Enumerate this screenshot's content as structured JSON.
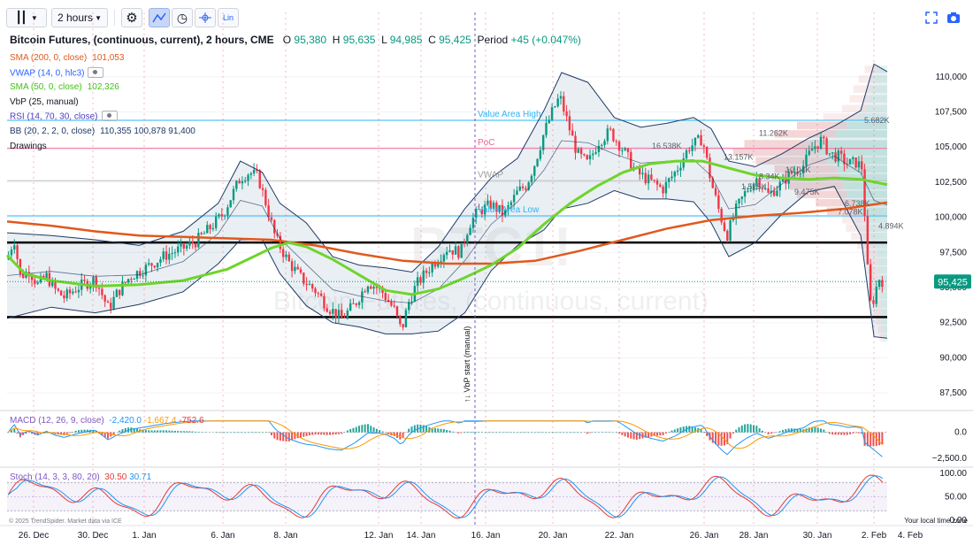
{
  "toolbar": {
    "timeframe": "2 hours",
    "scale_mode": "Lin"
  },
  "legend": {
    "symbol": "Bitcoin Futures, (continuous, current), 2 hours, CME",
    "o_label": "O",
    "o_value": "95,380",
    "h_label": "H",
    "h_value": "95,635",
    "l_label": "L",
    "l_value": "94,985",
    "c_label": "C",
    "c_value": "95,425",
    "period_label": "Period",
    "period_value": "+45 (+0.047%)",
    "indicators": [
      {
        "label": "SMA (200, 0, close)",
        "value": "101,053",
        "color": "#e0591c"
      },
      {
        "label": "VWAP (14, 0, hlc3)",
        "value": "",
        "color": "#2962ff"
      },
      {
        "label": "SMA (50, 0, close)",
        "value": "102,326",
        "color": "#43c11a"
      },
      {
        "label": "VbP (25, manual)",
        "value": "",
        "color": "#131722"
      },
      {
        "label": "RSI (14, 70, 30, close)",
        "value": "",
        "color": "#4c3bc1"
      },
      {
        "label": "BB (20, 2, 2, 0, close)",
        "value": "110,355 100,878 91,400",
        "color": "#1e3a66"
      },
      {
        "label": "Drawings",
        "value": "",
        "color": "#131722"
      }
    ]
  },
  "watermark": {
    "line1": "BTC1!",
    "line2": "Bitcoin Futures, (continuous, current)"
  },
  "annotations": {
    "value_area_high": "Value Area High",
    "poc": "PoC",
    "vwap": "VWAP",
    "value_area_low": "Value Area Low",
    "vbp_start": "↑↓ VbP start (manual)",
    "volume_labels": [
      "11.262K",
      "5.682K",
      "16.538K",
      "13.157K",
      "10.04K",
      "8.34K",
      "1.525K",
      "9.475K",
      "6.738K",
      "7.078K",
      "4.894K"
    ]
  },
  "macd": {
    "label": "MACD (12, 26, 9, close)",
    "v1": "-2,420.0",
    "v2": "-1,667.4",
    "v3": "-752.6",
    "ticks": [
      "0.0",
      "−2,500.0"
    ]
  },
  "stoch": {
    "label": "Stoch (14, 3, 3, 80, 20)",
    "v1": "30.50",
    "v2": "30.71",
    "ticks": [
      "100.00",
      "50.00",
      "0.00"
    ]
  },
  "footer": {
    "local_time": "Your local time zone",
    "copyright": "© 2025 TrendSpider. Market data via ICE"
  },
  "chart_data": {
    "type": "candlestick",
    "price_axis": {
      "ticks": [
        "110,000",
        "107,500",
        "105,000",
        "102,500",
        "100,000",
        "97,500",
        "95,000",
        "92,500",
        "90,000",
        "87,500"
      ],
      "range": [
        86500,
        112000
      ],
      "last_price": "95,425"
    },
    "x_labels": [
      "26. Dec",
      "30. Dec",
      "1. Jan",
      "6. Jan",
      "8. Jan",
      "12. Jan",
      "14. Jan",
      "16. Jan",
      "20. Jan",
      "22. Jan",
      "26. Jan",
      "28. Jan",
      "30. Jan",
      "2. Feb",
      "4. Feb"
    ],
    "horizontal_lines": [
      {
        "name": "value-area-high",
        "price": 106900,
        "color": "#29b6f6"
      },
      {
        "name": "poc",
        "price": 104900,
        "color": "#f06292"
      },
      {
        "name": "vwap",
        "price": 102600,
        "color": "#bdbdbd"
      },
      {
        "name": "value-area-low",
        "price": 100100,
        "color": "#29b6f6"
      },
      {
        "name": "resistance",
        "price": 98200,
        "color": "#000000"
      },
      {
        "name": "support",
        "price": 92900,
        "color": "#000000"
      }
    ],
    "price_path": [
      [
        0,
        97000
      ],
      [
        8,
        98500
      ],
      [
        15,
        95800
      ],
      [
        25,
        96200
      ],
      [
        35,
        95200
      ],
      [
        45,
        95800
      ],
      [
        55,
        94800
      ],
      [
        65,
        94300
      ],
      [
        80,
        95000
      ],
      [
        100,
        95600
      ],
      [
        115,
        93500
      ],
      [
        125,
        94600
      ],
      [
        140,
        95800
      ],
      [
        160,
        96500
      ],
      [
        180,
        97300
      ],
      [
        200,
        97800
      ],
      [
        215,
        98300
      ],
      [
        230,
        99200
      ],
      [
        245,
        100200
      ],
      [
        255,
        101500
      ],
      [
        265,
        102800
      ],
      [
        275,
        103200
      ],
      [
        285,
        102900
      ],
      [
        295,
        100800
      ],
      [
        305,
        98500
      ],
      [
        320,
        96800
      ],
      [
        335,
        95600
      ],
      [
        350,
        94800
      ],
      [
        365,
        93600
      ],
      [
        380,
        92800
      ],
      [
        395,
        93800
      ],
      [
        410,
        95400
      ],
      [
        425,
        94800
      ],
      [
        440,
        93400
      ],
      [
        448,
        91900
      ],
      [
        456,
        93900
      ],
      [
        465,
        95200
      ],
      [
        480,
        96400
      ],
      [
        500,
        97800
      ],
      [
        515,
        97500
      ],
      [
        525,
        99500
      ],
      [
        535,
        100400
      ],
      [
        550,
        100900
      ],
      [
        565,
        100200
      ],
      [
        580,
        101800
      ],
      [
        590,
        102300
      ],
      [
        600,
        103900
      ],
      [
        610,
        106000
      ],
      [
        620,
        107600
      ],
      [
        628,
        108600
      ],
      [
        638,
        106500
      ],
      [
        648,
        104500
      ],
      [
        660,
        103800
      ],
      [
        672,
        105400
      ],
      [
        685,
        106100
      ],
      [
        700,
        104800
      ],
      [
        715,
        103200
      ],
      [
        730,
        102600
      ],
      [
        745,
        102000
      ],
      [
        760,
        103300
      ],
      [
        775,
        105000
      ],
      [
        790,
        105600
      ],
      [
        800,
        102500
      ],
      [
        810,
        100200
      ],
      [
        818,
        98700
      ],
      [
        828,
        100500
      ],
      [
        840,
        101900
      ],
      [
        852,
        102800
      ],
      [
        865,
        101600
      ],
      [
        878,
        102300
      ],
      [
        890,
        103100
      ],
      [
        905,
        103700
      ],
      [
        915,
        104900
      ],
      [
        925,
        105500
      ],
      [
        935,
        104500
      ],
      [
        945,
        104300
      ],
      [
        955,
        103800
      ],
      [
        965,
        103900
      ],
      [
        972,
        103500
      ],
      [
        976,
        98200
      ],
      [
        980,
        93800
      ],
      [
        985,
        94200
      ],
      [
        990,
        95700
      ],
      [
        996,
        95425
      ]
    ],
    "sma200": [
      [
        0,
        99700
      ],
      [
        50,
        99400
      ],
      [
        100,
        99000
      ],
      [
        150,
        98700
      ],
      [
        200,
        98600
      ],
      [
        250,
        98500
      ],
      [
        300,
        98400
      ],
      [
        350,
        98000
      ],
      [
        400,
        97400
      ],
      [
        450,
        96900
      ],
      [
        500,
        96700
      ],
      [
        550,
        96700
      ],
      [
        600,
        96900
      ],
      [
        650,
        97600
      ],
      [
        700,
        98400
      ],
      [
        750,
        99200
      ],
      [
        800,
        99800
      ],
      [
        850,
        100100
      ],
      [
        900,
        100300
      ],
      [
        950,
        100600
      ],
      [
        1000,
        101053
      ]
    ],
    "sma50": [
      [
        0,
        97300
      ],
      [
        20,
        96000
      ],
      [
        50,
        95500
      ],
      [
        100,
        95100
      ],
      [
        150,
        95200
      ],
      [
        200,
        95500
      ],
      [
        250,
        96300
      ],
      [
        280,
        97200
      ],
      [
        300,
        97800
      ],
      [
        320,
        98200
      ],
      [
        340,
        97900
      ],
      [
        370,
        97000
      ],
      [
        400,
        95900
      ],
      [
        430,
        94800
      ],
      [
        460,
        94500
      ],
      [
        490,
        94900
      ],
      [
        520,
        95700
      ],
      [
        550,
        96600
      ],
      [
        580,
        97800
      ],
      [
        610,
        99500
      ],
      [
        640,
        101000
      ],
      [
        670,
        102200
      ],
      [
        700,
        103200
      ],
      [
        730,
        103800
      ],
      [
        760,
        104000
      ],
      [
        790,
        104000
      ],
      [
        820,
        103500
      ],
      [
        850,
        103000
      ],
      [
        880,
        102800
      ],
      [
        910,
        102700
      ],
      [
        940,
        102800
      ],
      [
        970,
        102700
      ],
      [
        1000,
        102326
      ]
    ],
    "bb_upper": [
      [
        0,
        98900
      ],
      [
        50,
        98700
      ],
      [
        100,
        98400
      ],
      [
        150,
        98000
      ],
      [
        200,
        99000
      ],
      [
        240,
        101000
      ],
      [
        265,
        104000
      ],
      [
        290,
        103200
      ],
      [
        310,
        101000
      ],
      [
        340,
        99600
      ],
      [
        370,
        97200
      ],
      [
        400,
        96600
      ],
      [
        430,
        96400
      ],
      [
        460,
        96100
      ],
      [
        490,
        97900
      ],
      [
        520,
        100600
      ],
      [
        550,
        102800
      ],
      [
        580,
        104200
      ],
      [
        610,
        107600
      ],
      [
        630,
        110300
      ],
      [
        660,
        109600
      ],
      [
        690,
        107100
      ],
      [
        720,
        106400
      ],
      [
        750,
        106700
      ],
      [
        780,
        107100
      ],
      [
        800,
        106300
      ],
      [
        820,
        104000
      ],
      [
        850,
        103600
      ],
      [
        880,
        104500
      ],
      [
        910,
        105600
      ],
      [
        940,
        106500
      ],
      [
        970,
        107600
      ],
      [
        985,
        110900
      ],
      [
        1000,
        110355
      ]
    ],
    "bb_lower": [
      [
        0,
        92800
      ],
      [
        50,
        93600
      ],
      [
        100,
        93200
      ],
      [
        150,
        93800
      ],
      [
        200,
        94700
      ],
      [
        240,
        96700
      ],
      [
        265,
        98400
      ],
      [
        290,
        98400
      ],
      [
        310,
        96000
      ],
      [
        340,
        93700
      ],
      [
        370,
        92500
      ],
      [
        400,
        92200
      ],
      [
        430,
        91700
      ],
      [
        460,
        91700
      ],
      [
        490,
        91900
      ],
      [
        520,
        93200
      ],
      [
        550,
        96200
      ],
      [
        580,
        98000
      ],
      [
        610,
        99100
      ],
      [
        630,
        100600
      ],
      [
        660,
        101000
      ],
      [
        690,
        101900
      ],
      [
        720,
        101300
      ],
      [
        750,
        101300
      ],
      [
        780,
        101100
      ],
      [
        800,
        99600
      ],
      [
        820,
        97200
      ],
      [
        850,
        98200
      ],
      [
        880,
        100200
      ],
      [
        910,
        101800
      ],
      [
        940,
        102200
      ],
      [
        970,
        98700
      ],
      [
        985,
        91500
      ],
      [
        1000,
        91400
      ]
    ]
  }
}
